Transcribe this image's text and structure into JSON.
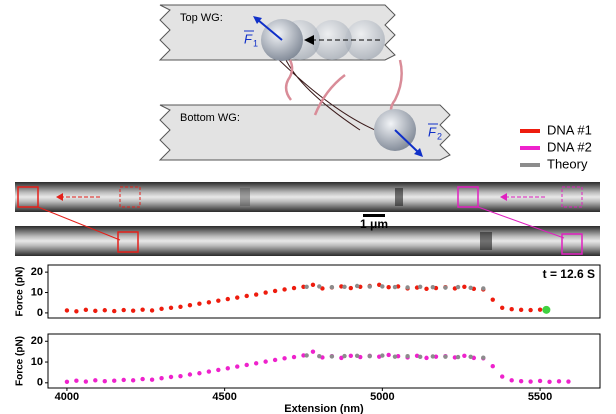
{
  "diagram": {
    "top_label": "Top WG:",
    "bottom_label": "Bottom WG:",
    "force_1": {
      "symbol": "F",
      "index": "1"
    },
    "force_2": {
      "symbol": "F",
      "index": "2"
    }
  },
  "scale_bar": "1 μm",
  "chart_data": [
    {
      "type": "scatter",
      "ylabel": "Force (pN)",
      "annotation": "t = 12.6 S",
      "xlim": [
        3940,
        5690
      ],
      "ylim": [
        -2.5,
        23.5
      ],
      "yticks": [
        0,
        10,
        20
      ],
      "x": [
        4000,
        4030,
        4060,
        4090,
        4120,
        4150,
        4180,
        4210,
        4240,
        4270,
        4300,
        4330,
        4360,
        4390,
        4420,
        4450,
        4480,
        4510,
        4540,
        4570,
        4600,
        4630,
        4660,
        4690,
        4720,
        4750,
        4780,
        4810,
        4840,
        4870,
        4900,
        4930,
        4960,
        4990,
        5020,
        5050,
        5080,
        5110,
        5140,
        5170,
        5200,
        5230,
        5260,
        5290,
        5320,
        5350,
        5380,
        5410,
        5440,
        5470,
        5500
      ],
      "series": [
        {
          "name": "DNA #1",
          "color": "#ee1c0e",
          "values": [
            1.2,
            0.8,
            1.5,
            1.0,
            1.3,
            0.9,
            1.4,
            1.1,
            1.6,
            1.2,
            2.0,
            2.5,
            3.0,
            3.8,
            4.5,
            5.2,
            6.0,
            6.8,
            7.5,
            8.3,
            9.0,
            10.0,
            10.8,
            11.5,
            12.2,
            12.8,
            13.8,
            12.0,
            12.5,
            13.0,
            12.2,
            12.8,
            13.2,
            13.8,
            12.6,
            13.0,
            12.0,
            12.4,
            11.8,
            12.2,
            12.6,
            12.0,
            12.8,
            11.8,
            11.5,
            6.5,
            2.5,
            1.8,
            1.5,
            1.4,
            1.6
          ]
        },
        {
          "name": "Theory",
          "color": "#8c8c8c",
          "x": [
            4760,
            4800,
            4840,
            4880,
            4920,
            4960,
            5000,
            5040,
            5080,
            5120,
            5160,
            5200,
            5240,
            5280,
            5320
          ],
          "values": [
            12.8,
            13.0,
            12.6,
            12.8,
            13.2,
            12.9,
            13.0,
            12.7,
            12.5,
            12.8,
            12.6,
            12.4,
            12.7,
            12.3,
            12.0
          ]
        }
      ],
      "marker": {
        "x": 5520,
        "y": 1.5,
        "color": "#3fd13f"
      }
    },
    {
      "type": "scatter",
      "ylabel": "Force (pN)",
      "xlabel": "Extension (nm)",
      "xlim": [
        3940,
        5690
      ],
      "ylim": [
        -2.5,
        23.5
      ],
      "yticks": [
        0,
        10,
        20
      ],
      "xticks": [
        4000,
        4500,
        5000,
        5500
      ],
      "x": [
        4000,
        4030,
        4060,
        4090,
        4120,
        4150,
        4180,
        4210,
        4240,
        4270,
        4300,
        4330,
        4360,
        4390,
        4420,
        4450,
        4480,
        4510,
        4540,
        4570,
        4600,
        4630,
        4660,
        4690,
        4720,
        4750,
        4780,
        4810,
        4840,
        4870,
        4900,
        4930,
        4960,
        4990,
        5020,
        5050,
        5080,
        5110,
        5140,
        5170,
        5200,
        5230,
        5260,
        5290,
        5320,
        5350,
        5380,
        5410,
        5440,
        5470,
        5500,
        5530,
        5560,
        5590
      ],
      "series": [
        {
          "name": "DNA #2",
          "color": "#ee22cc",
          "values": [
            0.5,
            1.0,
            0.6,
            1.2,
            0.8,
            1.0,
            1.4,
            1.2,
            1.8,
            1.5,
            2.2,
            2.8,
            3.2,
            4.0,
            4.6,
            5.4,
            6.2,
            7.0,
            7.8,
            8.6,
            9.4,
            10.2,
            11.0,
            11.8,
            12.4,
            13.2,
            15.0,
            12.2,
            12.8,
            12.0,
            13.0,
            12.4,
            13.0,
            12.6,
            13.4,
            12.8,
            12.2,
            13.0,
            12.0,
            12.6,
            12.8,
            12.2,
            13.0,
            12.0,
            11.8,
            8.0,
            3.0,
            1.2,
            0.8,
            0.6,
            0.9,
            0.5,
            0.7,
            0.6
          ]
        },
        {
          "color": "#8c8c8c",
          "x": [
            4760,
            4800,
            4840,
            4880,
            4920,
            4960,
            5000,
            5040,
            5080,
            5120,
            5160,
            5200,
            5240,
            5280,
            5320
          ],
          "values": [
            13.2,
            12.8,
            12.7,
            12.9,
            13.0,
            12.8,
            13.1,
            12.6,
            12.8,
            12.5,
            12.7,
            12.6,
            12.4,
            12.5,
            12.1
          ]
        }
      ]
    }
  ]
}
